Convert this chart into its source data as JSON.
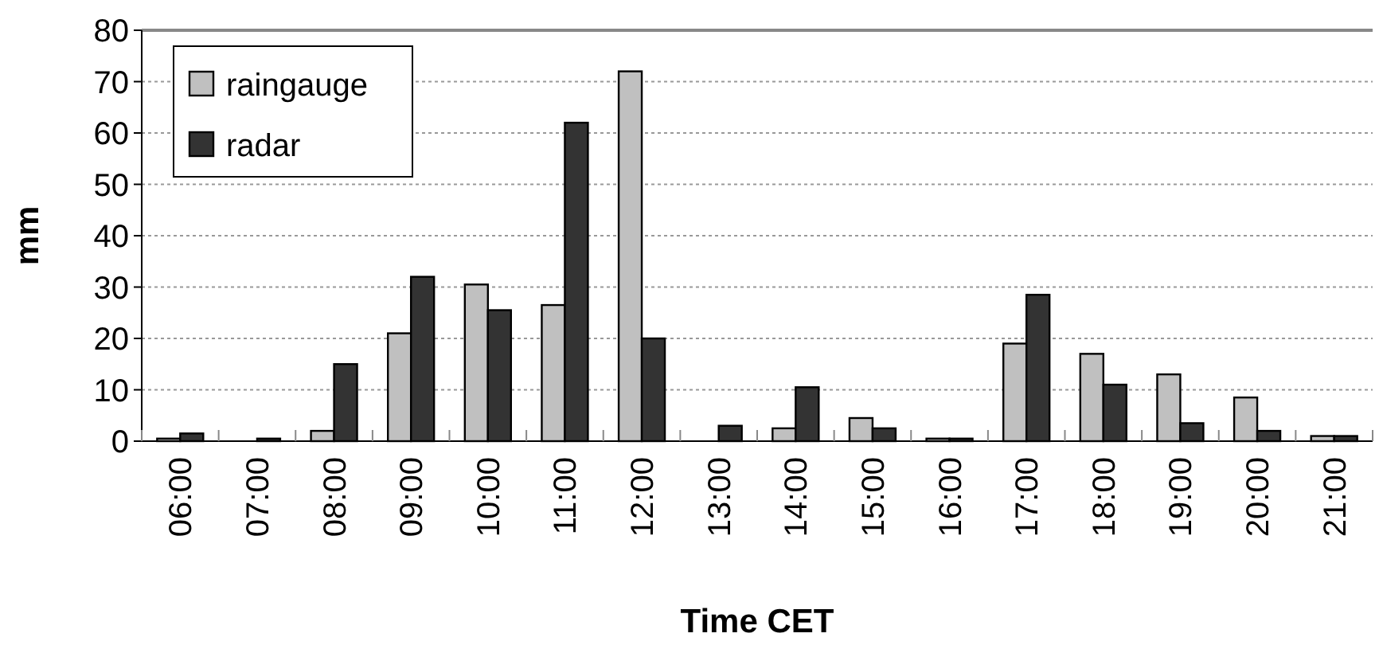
{
  "chart_data": {
    "type": "bar",
    "xlabel": "Time CET",
    "ylabel": "mm",
    "categories": [
      "06:00",
      "07:00",
      "08:00",
      "09:00",
      "10:00",
      "11:00",
      "12:00",
      "13:00",
      "14:00",
      "15:00",
      "16:00",
      "17:00",
      "18:00",
      "19:00",
      "20:00",
      "21:00"
    ],
    "series": [
      {
        "name": "raingauge",
        "color": "#c0c0c0",
        "values": [
          0.5,
          0,
          2,
          21,
          30.5,
          26.5,
          72,
          0,
          2.5,
          4.5,
          0.5,
          19,
          17,
          13,
          8.5,
          1
        ]
      },
      {
        "name": "radar",
        "color": "#333333",
        "values": [
          1.5,
          0.5,
          15,
          32,
          25.5,
          62,
          20,
          3,
          10.5,
          2.5,
          0.5,
          28.5,
          11,
          3.5,
          2,
          1
        ]
      }
    ],
    "ylim": [
      0,
      80
    ],
    "yticks": [
      0,
      10,
      20,
      30,
      40,
      50,
      60,
      70,
      80
    ],
    "grid": "y",
    "legend": "top left"
  }
}
